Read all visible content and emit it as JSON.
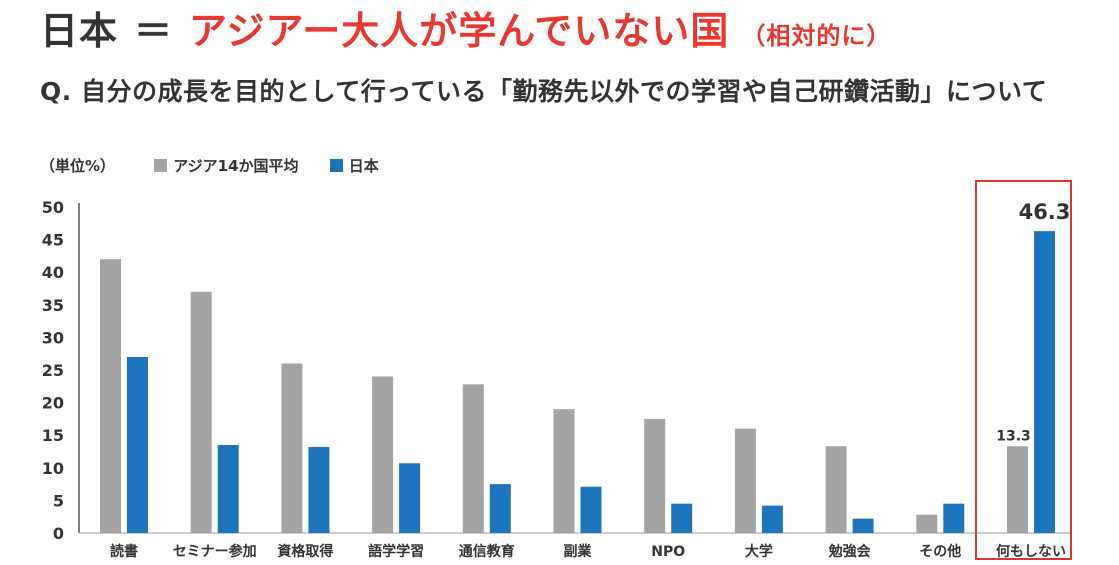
{
  "title": {
    "left": "日本",
    "equals": "＝",
    "main": "アジアー大人が学んでいない国",
    "note": "（相対的に）"
  },
  "subtitle": "Q. 自分の成長を目的として行っている「勤務先以外での学習や自己研鑽活動」について",
  "legend": {
    "unit": "（単位%）",
    "items": [
      {
        "label": "アジア14か国平均",
        "color": "#a3a3a3"
      },
      {
        "label": "日本",
        "color": "#1c75bc"
      }
    ]
  },
  "chart_data": {
    "type": "bar",
    "categories": [
      "読書",
      "セミナー参加",
      "資格取得",
      "語学学習",
      "通信教育",
      "副業",
      "NPO",
      "大学",
      "勉強会",
      "その他",
      "何もしない"
    ],
    "series": [
      {
        "name": "アジア14か国平均",
        "color": "#a3a3a3",
        "values": [
          42,
          37,
          26,
          24,
          22.8,
          19,
          17.5,
          16,
          13.3,
          2.8,
          13.3
        ]
      },
      {
        "name": "日本",
        "color": "#1c75bc",
        "values": [
          27,
          13.5,
          13.2,
          10.7,
          7.5,
          7.1,
          4.5,
          4.2,
          2.2,
          4.5,
          46.3
        ]
      }
    ],
    "ylim": [
      0,
      50
    ],
    "yticks": [
      0,
      5,
      10,
      15,
      20,
      25,
      30,
      35,
      40,
      45,
      50
    ],
    "annotations": [
      {
        "category": "何もしない",
        "series": "アジア14か国平均",
        "text": "13.3"
      },
      {
        "category": "何もしない",
        "series": "日本",
        "text": "46.3"
      }
    ],
    "highlighted_category": "何もしない",
    "highlight_color": "#d8343a",
    "grid": false
  }
}
